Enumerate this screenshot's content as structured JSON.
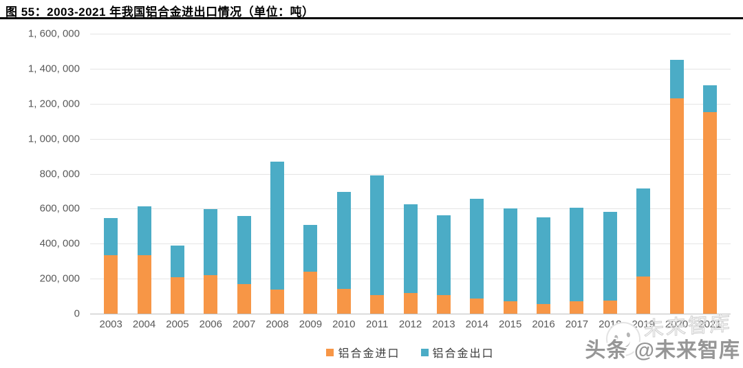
{
  "header": {
    "title": "图 55：2003-2021 年我国铝合金进出口情况（单位：吨）"
  },
  "chart_data": {
    "type": "bar",
    "stacked": true,
    "title": "2003-2021 年我国铝合金进出口情况",
    "unit": "吨",
    "xlabel": "",
    "ylabel": "",
    "categories": [
      "2003",
      "2004",
      "2005",
      "2006",
      "2007",
      "2008",
      "2009",
      "2010",
      "2011",
      "2012",
      "2013",
      "2014",
      "2015",
      "2016",
      "2017",
      "2018",
      "2019",
      "2020",
      "2021"
    ],
    "series": [
      {
        "name": "铝合金进口",
        "key": "import",
        "color": "#F79646",
        "values": [
          335000,
          336000,
          210000,
          221000,
          170000,
          138000,
          240000,
          142000,
          105000,
          118000,
          107000,
          85000,
          72000,
          54000,
          69000,
          73000,
          213000,
          1232000,
          1150000
        ]
      },
      {
        "name": "铝合金出口",
        "key": "export",
        "color": "#4BACC6",
        "values": [
          210000,
          277000,
          180000,
          375000,
          387000,
          730000,
          267000,
          553000,
          685000,
          508000,
          457000,
          570000,
          531000,
          496000,
          536000,
          507000,
          502000,
          218000,
          155000
        ]
      }
    ],
    "ylim": [
      0,
      1600000
    ],
    "ytick_step": 200000,
    "ytick_labels_top_down": [
      "1, 600, 000",
      "1, 400, 000",
      "1, 200, 000",
      "1, 000, 000",
      "800, 000",
      "600, 000",
      "400, 000",
      "200, 000",
      "0"
    ],
    "grid": true,
    "legend_position": "bottom"
  },
  "watermark": {
    "text": "头条 @未来智库",
    "ghost_text": "未来智库"
  },
  "colors": {
    "import_orange": "#F79646",
    "export_blue": "#4BACC6",
    "axis_text": "#595959",
    "gridline": "#e4e4e4",
    "title_text": "#000000"
  }
}
